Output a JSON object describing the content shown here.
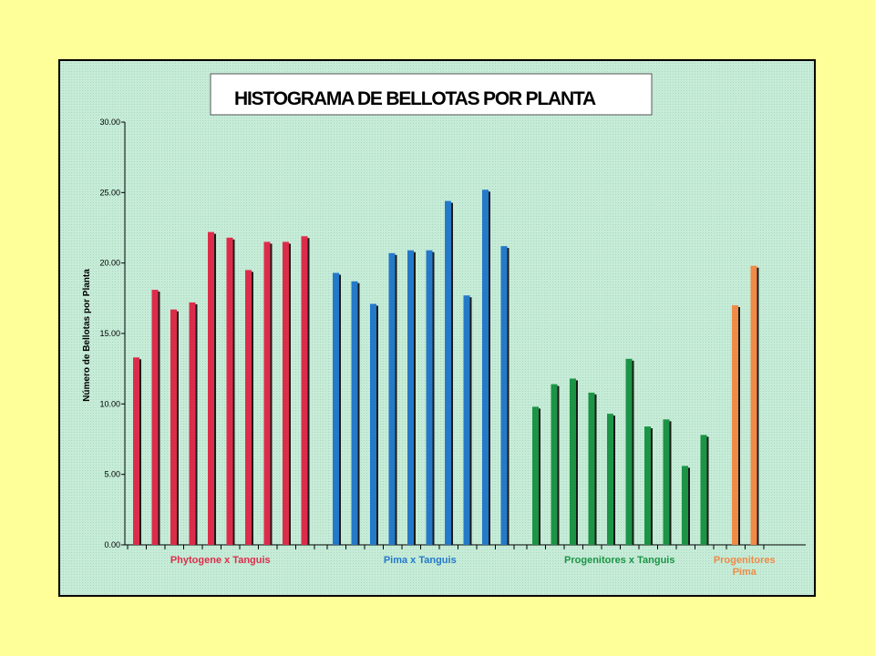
{
  "chart_data": {
    "type": "bar",
    "title": "HISTOGRAMA DE BELLOTAS POR PLANTA",
    "ylabel": "Número de Bellotas por Planta",
    "xlabel": "",
    "ylim": [
      0,
      30
    ],
    "yticks": [
      "0.00",
      "5.00",
      "10.00",
      "15.00",
      "20.00",
      "25.00",
      "30.00"
    ],
    "grid": false,
    "legend": "none",
    "groups": [
      {
        "label": [
          "Phytogene x Tanguis"
        ],
        "color": "#dd2c4a",
        "values": [
          13.3,
          18.1,
          16.7,
          17.2,
          22.2,
          21.8,
          19.5,
          21.5,
          21.5,
          21.9
        ]
      },
      {
        "label": [
          "Pima x Tanguis"
        ],
        "color": "#2479c9",
        "values": [
          19.3,
          18.7,
          17.1,
          20.7,
          20.9,
          20.9,
          24.4,
          17.7,
          25.2,
          21.2
        ]
      },
      {
        "label": [
          "Progenitores x Tanguis"
        ],
        "color": "#1c9445",
        "values": [
          9.8,
          11.4,
          11.8,
          10.8,
          9.3,
          13.2,
          8.4,
          8.9,
          5.6,
          7.8
        ]
      },
      {
        "label": [
          "Progenitores",
          "Pima"
        ],
        "color": "#f08a46",
        "values": [
          17.0,
          19.8
        ]
      }
    ]
  }
}
